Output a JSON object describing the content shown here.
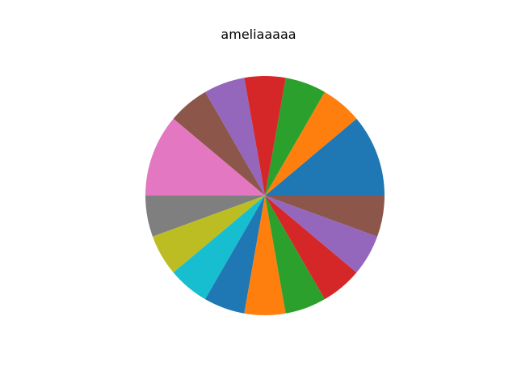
{
  "chart_data": {
    "type": "pie",
    "title": "ameliaaaaa",
    "start_angle_deg": 0,
    "direction": "counterclockwise",
    "slices": [
      {
        "value": 2,
        "color": "#1f77b4"
      },
      {
        "value": 1,
        "color": "#ff7f0e"
      },
      {
        "value": 1,
        "color": "#2ca02c"
      },
      {
        "value": 1,
        "color": "#d62728"
      },
      {
        "value": 1,
        "color": "#9467bd"
      },
      {
        "value": 1,
        "color": "#8c564b"
      },
      {
        "value": 2,
        "color": "#e377c2"
      },
      {
        "value": 1,
        "color": "#7f7f7f"
      },
      {
        "value": 1,
        "color": "#bcbd22"
      },
      {
        "value": 1,
        "color": "#17becf"
      },
      {
        "value": 1,
        "color": "#1f77b4"
      },
      {
        "value": 1,
        "color": "#ff7f0e"
      },
      {
        "value": 1,
        "color": "#2ca02c"
      },
      {
        "value": 1,
        "color": "#d62728"
      },
      {
        "value": 1,
        "color": "#9467bd"
      },
      {
        "value": 1,
        "color": "#8c564b"
      }
    ]
  }
}
